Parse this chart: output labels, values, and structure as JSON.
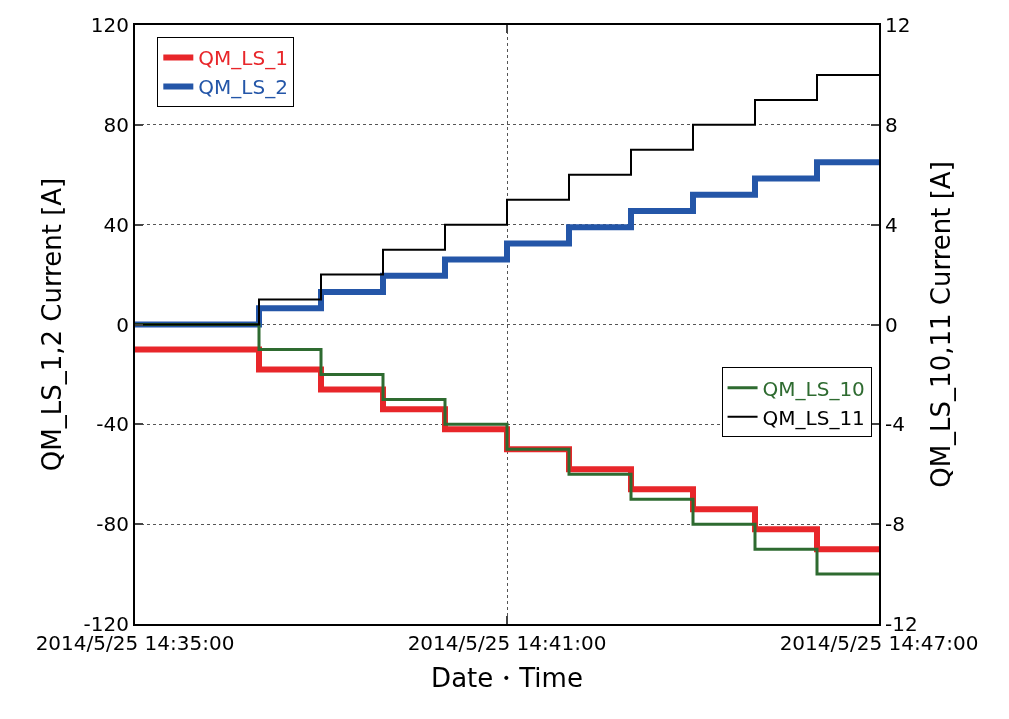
{
  "chart_data": {
    "type": "step",
    "xlabel": "Date・Time",
    "ylabel": "QM_LS_1,2 Current [A]",
    "y2label": "QM_LS_10,11 Current [A]",
    "xlim": [
      "2014-05-25T14:35",
      "2014-05-25T14:47"
    ],
    "xticks": [
      {
        "value": "2014-05-25T14:35",
        "label": "2014/5/25 14:35:00"
      },
      {
        "value": "2014-05-25T14:41",
        "label": "2014/5/25 14:41:00"
      },
      {
        "value": "2014-05-25T14:47",
        "label": "2014/5/25 14:47:00"
      }
    ],
    "ylim": [
      -120,
      120
    ],
    "yticks": [
      -120,
      -80,
      -40,
      0,
      40,
      80,
      120
    ],
    "y2lim": [
      -12,
      12
    ],
    "y2ticks": [
      -12,
      -8,
      -4,
      0,
      4,
      8,
      12
    ],
    "grid": true,
    "legend": "top left",
    "line_style": "solid",
    "x": [
      "2014-05-25T14:35",
      "2014-05-25T14:37",
      "2014-05-25T14:38",
      "2014-05-25T14:39",
      "2014-05-25T14:40",
      "2014-05-25T14:41",
      "2014-05-25T14:42",
      "2014-05-25T14:43",
      "2014-05-25T14:44",
      "2014-05-25T14:45",
      "2014-05-25T14:46",
      "2014-05-25T14:47"
    ],
    "series": [
      {
        "name": "QM_LS_1",
        "color": "#e8262a",
        "values": [
          -10,
          -18,
          -26,
          -34,
          -42,
          -50,
          -58,
          -66,
          -74,
          -82,
          -90,
          -90
        ]
      },
      {
        "name": "QM_LS_2",
        "color": "#2456a8",
        "values": [
          0,
          6.5,
          13,
          19.5,
          26,
          32.5,
          39,
          45.5,
          52,
          58.5,
          65,
          65
        ]
      },
      {
        "name": "QM_LS_10",
        "color": "#2e6b30",
        "axis": "y2",
        "values": [
          0,
          -1,
          -2,
          -3,
          -4,
          -5,
          -6,
          -7,
          -8,
          -9,
          -10,
          -10
        ]
      },
      {
        "name": "QM_LS_11",
        "color": "#000000",
        "axis": "y2",
        "values": [
          0,
          1,
          2,
          3,
          4,
          5,
          6,
          7,
          8,
          9,
          10,
          10
        ]
      }
    ]
  }
}
